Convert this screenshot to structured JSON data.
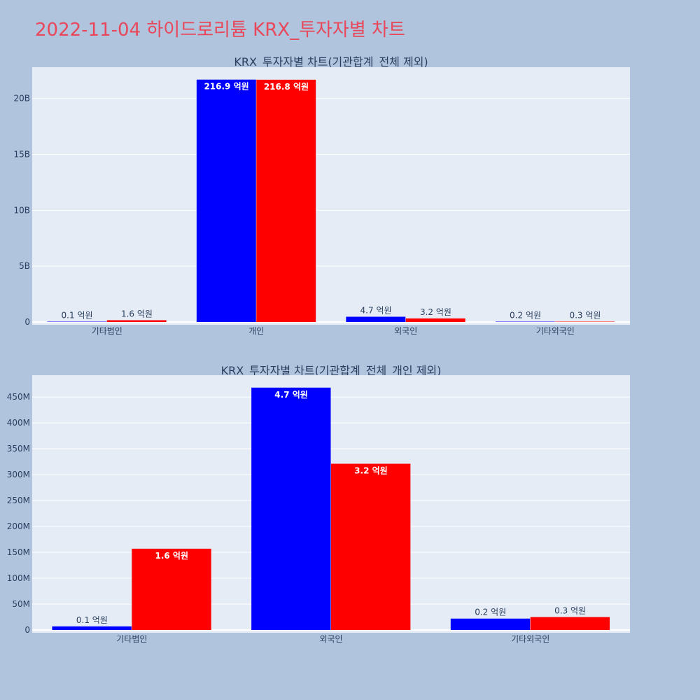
{
  "page": {
    "title": "2022-11-04 하이드로리튬 KRX_투자자별 차트"
  },
  "colors": {
    "series_a": "#0000ff",
    "series_b": "#ff0000",
    "plot_bg": "#e5ecf6",
    "grid": "#ffffff",
    "text": "#2a3f5f"
  },
  "chart_data": [
    {
      "type": "bar",
      "title": "KRX_투자자별 차트(기관합계_전체 제외)",
      "categories": [
        "기타법인",
        "개인",
        "외국인",
        "기타외국인"
      ],
      "ylim": [
        0,
        22800000000
      ],
      "yticks": [
        0,
        5000000000,
        10000000000,
        15000000000,
        20000000000
      ],
      "ytick_labels": [
        "0",
        "5B",
        "10B",
        "15B",
        "20B"
      ],
      "grid": true,
      "series": [
        {
          "values": [
            10000000,
            21690000000,
            470000000,
            20000000
          ],
          "labels": [
            "0.1 억원",
            "216.9 억원",
            "4.7 억원",
            "0.2 억원"
          ]
        },
        {
          "values": [
            160000000,
            21680000000,
            320000000,
            30000000
          ],
          "labels": [
            "1.6 억원",
            "216.8 억원",
            "3.2 억원",
            "0.3 억원"
          ]
        }
      ]
    },
    {
      "type": "bar",
      "title": "KRX_투자자별 차트(기관합계_전체_개인 제외)",
      "categories": [
        "기타법인",
        "외국인",
        "기타외국인"
      ],
      "ylim": [
        0,
        492000000
      ],
      "yticks": [
        0,
        50000000,
        100000000,
        150000000,
        200000000,
        250000000,
        300000000,
        350000000,
        400000000,
        450000000
      ],
      "ytick_labels": [
        "0",
        "50M",
        "100M",
        "150M",
        "200M",
        "250M",
        "300M",
        "350M",
        "400M",
        "450M"
      ],
      "grid": true,
      "series": [
        {
          "values": [
            7000000,
            468000000,
            22000000
          ],
          "labels": [
            "0.1 억원",
            "4.7 억원",
            "0.2 억원"
          ]
        },
        {
          "values": [
            157000000,
            321000000,
            25000000
          ],
          "labels": [
            "1.6 억원",
            "3.2 억원",
            "0.3 억원"
          ]
        }
      ]
    }
  ]
}
